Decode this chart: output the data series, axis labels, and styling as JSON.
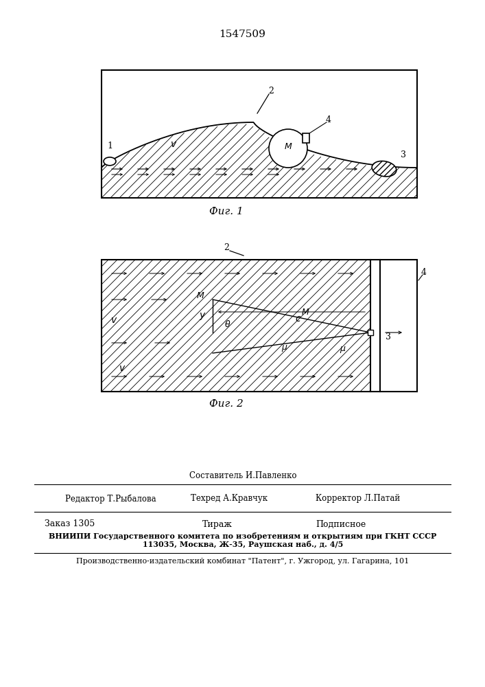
{
  "title_number": "1547509",
  "fig1_caption": "Фиг. 1",
  "fig2_caption": "Фиг. 2",
  "header_line1": "Составитель И.Павленко",
  "header_line2_left": "Редактор Т.Рыбалова",
  "header_line2_mid": "Техред А.Кравчук",
  "header_line2_right": "Корректор Л.Патай",
  "footer_line1_left": "Заказ 1305",
  "footer_line1_mid": "Тираж",
  "footer_line1_right": "Подписное",
  "footer_line2": "ВНИИПИ Государственного комитета по изобретениям и открытиям при ГКНТ СССР",
  "footer_line3": "113035, Москва, Ж-35, Раушская наб., д. 4/5",
  "footer_line4": "Производственно-издательский комбинат \"Патент\", г. Ужгород, ул. Гагарина, 101"
}
